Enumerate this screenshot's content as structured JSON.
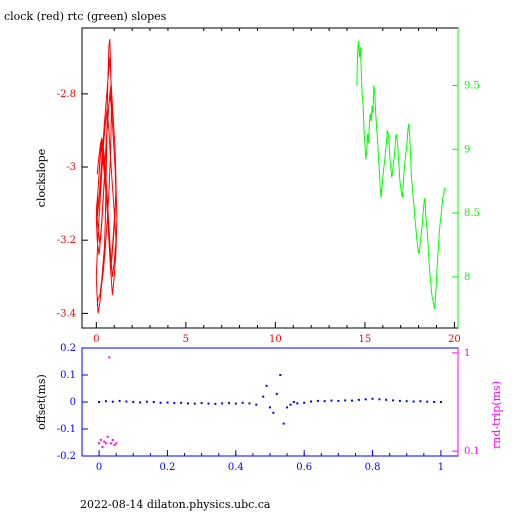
{
  "page": {
    "title": "clock (red) rtc (green) slopes",
    "footer": "2022-08-14 dilaton.physics.ubc.ca"
  },
  "chart_data": [
    {
      "type": "line",
      "title": "clock (red) rtc (green) slopes",
      "xlabel": "",
      "ylabel": "clockslope",
      "xlim": [
        -0.8,
        20.2
      ],
      "ylim": [
        -3.44,
        -2.62
      ],
      "ylim_right": [
        7.6,
        9.95
      ],
      "x_ticks": [
        0,
        5,
        10,
        15,
        20
      ],
      "y_ticks_left": [
        -2.8,
        -3,
        -3.2,
        -3.4
      ],
      "y_ticks_right": [
        9.5,
        9,
        8.5,
        8
      ],
      "grid": false,
      "series": [
        {
          "name": "clock (red)",
          "axis": "left",
          "color": "#ff0000",
          "x": [
            0.05,
            0.1,
            0.2,
            0.3,
            0.45,
            0.5,
            0.55,
            0.6,
            0.65,
            0.7,
            0.75,
            0.8,
            0.85,
            0.8,
            0.7,
            0.6,
            0.5,
            0.4,
            0.3,
            0.2,
            0.1,
            0.05,
            0.0,
            0.05,
            0.1,
            0.2,
            0.3,
            0.4,
            0.5,
            0.6,
            0.7,
            0.8,
            0.9,
            1.0,
            1.1,
            1.0,
            0.9,
            0.8,
            0.7,
            0.6,
            0.5,
            0.4,
            0.3,
            0.2,
            0.1,
            0.0,
            0.05,
            0.15,
            0.25,
            0.35,
            0.45,
            0.55,
            0.65,
            0.75,
            0.85,
            0.95,
            1.05,
            1.1,
            1.0,
            0.9,
            0.8,
            0.7,
            0.6,
            0.5,
            0.4,
            0.3,
            0.2,
            0.1,
            0.0,
            0.1,
            0.2,
            0.3,
            0.4,
            0.5,
            0.6,
            0.7,
            0.8,
            0.9,
            1.0,
            1.1,
            1.15,
            1.1,
            1.0,
            0.9,
            0.8,
            0.7,
            0.6,
            0.5,
            0.4,
            0.3,
            0.2,
            0.1,
            0.05,
            0.15,
            0.25,
            0.35,
            0.45,
            0.55,
            0.65,
            0.75,
            0.85,
            0.95,
            1.05,
            1.1,
            1.05,
            0.95,
            0.85,
            0.75,
            0.65,
            0.55,
            0.45,
            0.35,
            0.25,
            0.15,
            0.05
          ],
          "y": [
            -3.38,
            -3.36,
            -3.35,
            -3.31,
            -3.22,
            -3.15,
            -3.02,
            -2.86,
            -2.75,
            -2.67,
            -2.65,
            -2.72,
            -2.84,
            -2.96,
            -3.07,
            -3.15,
            -3.22,
            -3.28,
            -3.32,
            -3.37,
            -3.4,
            -3.36,
            -3.3,
            -3.24,
            -3.18,
            -3.1,
            -3.02,
            -2.94,
            -2.88,
            -2.84,
            -2.9,
            -2.98,
            -3.05,
            -3.12,
            -3.2,
            -3.26,
            -3.3,
            -3.24,
            -3.16,
            -3.08,
            -3.0,
            -2.95,
            -2.92,
            -2.98,
            -3.06,
            -3.14,
            -3.2,
            -3.24,
            -3.19,
            -3.12,
            -3.03,
            -2.93,
            -2.86,
            -2.8,
            -2.84,
            -2.92,
            -3.0,
            -3.08,
            -3.15,
            -3.22,
            -3.28,
            -3.2,
            -3.11,
            -3.03,
            -2.97,
            -2.93,
            -2.99,
            -3.06,
            -3.12,
            -3.17,
            -3.21,
            -3.15,
            -3.07,
            -2.98,
            -2.9,
            -2.83,
            -2.78,
            -2.88,
            -2.96,
            -3.05,
            -3.14,
            -3.23,
            -3.3,
            -3.35,
            -3.28,
            -3.19,
            -3.1,
            -3.02,
            -2.95,
            -3.0,
            -3.06,
            -3.1,
            -3.14,
            -3.09,
            -3.02,
            -2.95,
            -2.88,
            -2.82,
            -2.76,
            -2.7,
            -2.79,
            -2.87,
            -2.95,
            -3.04,
            -3.13,
            -3.2,
            -3.26,
            -3.22,
            -3.15,
            -3.08,
            -3.02,
            -2.97,
            -2.93,
            -2.97,
            -3.02
          ]
        },
        {
          "name": "rtc (green)",
          "axis": "right",
          "color": "#00ff00",
          "x": [
            14.55,
            14.6,
            14.65,
            14.7,
            14.75,
            14.8,
            14.85,
            14.9,
            14.95,
            15.0,
            15.05,
            15.1,
            15.15,
            15.2,
            15.25,
            15.3,
            15.35,
            15.4,
            15.45,
            15.5,
            15.55,
            15.6,
            15.65,
            15.7,
            15.75,
            15.8,
            15.85,
            15.9,
            15.95,
            16.0,
            16.05,
            16.1,
            16.15,
            16.2,
            16.25,
            16.3,
            16.35,
            16.4,
            16.45,
            16.5,
            16.55,
            16.6,
            16.65,
            16.7,
            16.75,
            16.8,
            16.85,
            16.9,
            16.95,
            17.0,
            17.05,
            17.1,
            17.15,
            17.2,
            17.25,
            17.3,
            17.35,
            17.4,
            17.45,
            17.5,
            17.55,
            17.6,
            17.65,
            17.7,
            17.75,
            17.8,
            17.85,
            17.9,
            17.95,
            18.0,
            18.05,
            18.1,
            18.15,
            18.2,
            18.25,
            18.3,
            18.35,
            18.4,
            18.45,
            18.5,
            18.55,
            18.6,
            18.65,
            18.7,
            18.75,
            18.8,
            18.85,
            18.9,
            18.95,
            19.0,
            19.05,
            19.1,
            19.15,
            19.2,
            19.25,
            19.3,
            19.35,
            19.4,
            19.45
          ],
          "y": [
            9.5,
            9.78,
            9.85,
            9.72,
            9.8,
            9.6,
            9.42,
            9.35,
            9.15,
            9.05,
            8.92,
            8.98,
            9.12,
            9.05,
            9.2,
            9.28,
            9.22,
            9.34,
            9.28,
            9.5,
            9.45,
            9.3,
            9.18,
            9.1,
            8.95,
            8.85,
            8.72,
            8.62,
            8.7,
            8.78,
            8.85,
            8.9,
            8.98,
            9.05,
            9.15,
            9.12,
            9.05,
            8.92,
            8.85,
            8.78,
            8.82,
            8.9,
            8.95,
            9.05,
            9.12,
            9.08,
            9.0,
            8.88,
            8.76,
            8.7,
            8.65,
            8.62,
            8.75,
            8.85,
            8.92,
            8.98,
            9.05,
            9.15,
            9.2,
            9.1,
            8.95,
            8.8,
            8.7,
            8.62,
            8.55,
            8.45,
            8.38,
            8.3,
            8.24,
            8.18,
            8.2,
            8.28,
            8.35,
            8.4,
            8.5,
            8.58,
            8.62,
            8.48,
            8.4,
            8.32,
            8.18,
            8.08,
            8.0,
            7.92,
            7.85,
            7.82,
            7.78,
            7.75,
            7.85,
            7.98,
            8.12,
            8.22,
            8.34,
            8.42,
            8.48,
            8.55,
            8.62,
            8.64,
            8.7
          ]
        }
      ]
    },
    {
      "type": "scatter",
      "title": "",
      "xlabel": "",
      "ylabel": "offset(ms)",
      "ylabel_right": "rnd-trip(ms)",
      "xlim": [
        -0.05,
        1.05
      ],
      "ylim": [
        -0.2,
        0.2
      ],
      "ylim_right_log": [
        0.1,
        1
      ],
      "x_ticks": [
        0,
        0.2,
        0.4,
        0.6,
        0.8,
        1
      ],
      "x_tick_labels": [
        "0",
        "0.2",
        "0.4",
        "0.6",
        "0.8",
        "1"
      ],
      "y_ticks_left": [
        0.2,
        0.1,
        0,
        -0.1,
        -0.2
      ],
      "y_tick_labels_left": [
        "0.2",
        "0.1",
        "0",
        "-0.1",
        "-0.2"
      ],
      "y_ticks_right": [
        1,
        0.1
      ],
      "y_tick_labels_right": [
        "1",
        "0.1"
      ],
      "grid": false,
      "series": [
        {
          "name": "offset(ms)",
          "axis": "left",
          "color": "#0000ff",
          "description_points": "dense band near 0 from x=0 to 1, with spikes near x=0.49 and x=0.54",
          "x": [
            0.0,
            0.02,
            0.04,
            0.06,
            0.08,
            0.1,
            0.12,
            0.14,
            0.16,
            0.18,
            0.2,
            0.22,
            0.24,
            0.26,
            0.28,
            0.3,
            0.32,
            0.34,
            0.36,
            0.38,
            0.4,
            0.42,
            0.44,
            0.46,
            0.48,
            0.49,
            0.5,
            0.51,
            0.52,
            0.53,
            0.54,
            0.55,
            0.56,
            0.57,
            0.58,
            0.6,
            0.62,
            0.64,
            0.66,
            0.68,
            0.7,
            0.72,
            0.74,
            0.76,
            0.78,
            0.8,
            0.82,
            0.84,
            0.86,
            0.88,
            0.9,
            0.92,
            0.94,
            0.96,
            0.98,
            1.0
          ],
          "y": [
            0.0,
            0.003,
            0.001,
            0.004,
            0.002,
            0.0,
            -0.002,
            0.001,
            0.0,
            -0.003,
            -0.002,
            -0.004,
            -0.003,
            -0.005,
            -0.006,
            -0.004,
            -0.006,
            -0.007,
            -0.005,
            -0.004,
            -0.006,
            -0.003,
            -0.005,
            -0.01,
            0.02,
            0.06,
            -0.02,
            -0.04,
            0.03,
            0.1,
            -0.08,
            -0.02,
            -0.01,
            0.0,
            -0.005,
            -0.003,
            0.002,
            0.004,
            0.003,
            0.005,
            0.004,
            0.006,
            0.005,
            0.008,
            0.01,
            0.012,
            0.01,
            0.008,
            0.006,
            0.004,
            0.003,
            0.002,
            0.003,
            0.001,
            0.0,
            0.0
          ]
        },
        {
          "name": "rnd-trip(ms)",
          "axis": "right",
          "color": "#ff00ff",
          "description_points": "cluster near x 0 to 0.05 around 0.12 ms, with a vertical spike near x=0.03",
          "x": [
            0.0,
            0.005,
            0.01,
            0.015,
            0.02,
            0.025,
            0.03,
            0.035,
            0.04,
            0.045,
            0.05
          ],
          "y": [
            0.12,
            0.13,
            0.11,
            0.125,
            0.12,
            0.14,
            0.9,
            0.12,
            0.13,
            0.115,
            0.12
          ]
        }
      ]
    }
  ]
}
